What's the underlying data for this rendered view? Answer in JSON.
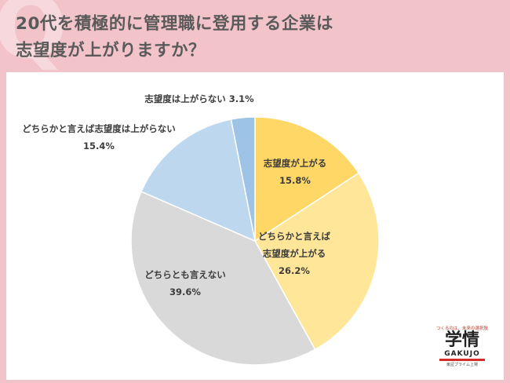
{
  "header": {
    "title_line1": "20代を積極的に管理職に登用する企業は",
    "title_line2": "志望度が上がりますか？"
  },
  "chart_data": {
    "type": "pie",
    "title": "20代を積極的に管理職に登用する企業は志望度が上がりますか？",
    "start_angle_deg": 0,
    "direction": "clockwise",
    "slices": [
      {
        "label_lines": [
          "志望度が上がる"
        ],
        "percent_text": "15.8%",
        "value": 15.8,
        "color": "#ffd766"
      },
      {
        "label_lines": [
          "どちらかと言えば",
          "志望度が上がる"
        ],
        "percent_text": "26.2%",
        "value": 26.2,
        "color": "#ffe699"
      },
      {
        "label_lines": [
          "どちらとも言えない"
        ],
        "percent_text": "39.6%",
        "value": 39.6,
        "color": "#d9d9d9"
      },
      {
        "label_lines": [
          "どちらかと言えば志望度は上がらない"
        ],
        "percent_text": "15.4%",
        "value": 15.4,
        "color": "#bdd7ee"
      },
      {
        "label_lines": [
          "志望度は上がらない"
        ],
        "percent_text": "3.1%",
        "value": 3.1,
        "color": "#9dc3e6",
        "single_line": true
      }
    ]
  },
  "logo": {
    "tagline": "つくるのは、未来の選択肢",
    "kanji": "学情",
    "roman": "GAKUJO",
    "subline": "東証プライム上場"
  }
}
